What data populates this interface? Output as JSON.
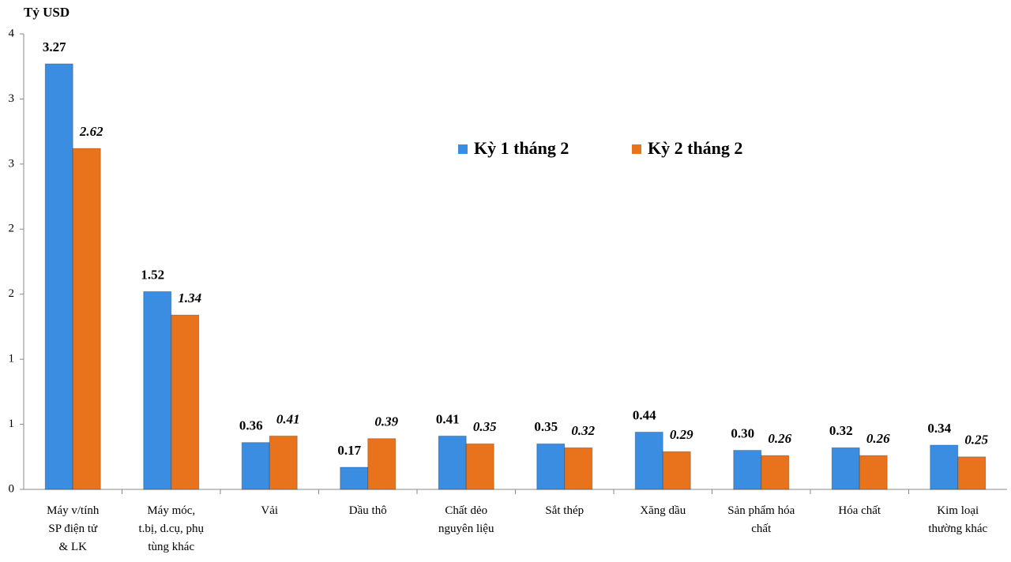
{
  "chart_data": {
    "type": "bar",
    "y_axis_label": "Tỷ USD",
    "categories": [
      "Máy v/tính\nSP điện tử\n& LK",
      "Máy móc,\nt.bị, d.cụ, phụ\ntùng khác",
      "Vải",
      "Dầu thô",
      "Chất dẻo\nnguyên liệu",
      "Sắt thép",
      "Xăng dầu",
      "Sản phẩm hóa\nchất",
      "Hóa chất",
      "Kim loại\nthường khác"
    ],
    "series": [
      {
        "name": "Kỳ 1 tháng 2",
        "color": "#3a8de0",
        "values": [
          3.27,
          1.52,
          0.36,
          0.17,
          0.41,
          0.35,
          0.44,
          0.3,
          0.32,
          0.34
        ],
        "value_labels": [
          "3.27",
          "1.52",
          "0.36",
          "0.17",
          "0.41",
          "0.35",
          "0.44",
          "0.30",
          "0.32",
          "0.34"
        ]
      },
      {
        "name": "Kỳ 2 tháng 2",
        "color": "#e8731c",
        "values": [
          2.62,
          1.34,
          0.41,
          0.39,
          0.35,
          0.32,
          0.29,
          0.26,
          0.26,
          0.25
        ],
        "value_labels": [
          "2.62",
          "1.34",
          "0.41",
          "0.39",
          "0.35",
          "0.32",
          "0.29",
          "0.26",
          "0.26",
          "0.25"
        ]
      }
    ],
    "ylim": [
      0,
      3.5
    ],
    "yticks": [
      0,
      {
        "value": 0.5,
        "label": "1"
      },
      1,
      {
        "value": 1.5,
        "label": "2"
      },
      2,
      {
        "value": 2.5,
        "label": "3"
      },
      3,
      {
        "value": 3.5,
        "label": "4"
      }
    ],
    "grid": false
  }
}
